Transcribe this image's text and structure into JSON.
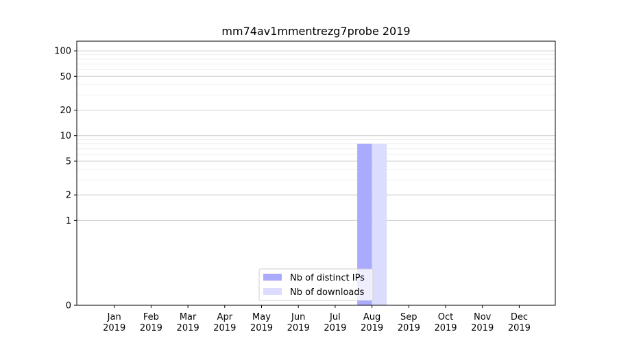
{
  "chart_data": {
    "type": "bar",
    "title": "mm74av1mmentrezg7probe 2019",
    "xlabel": "",
    "ylabel": "",
    "y_scale": "symlog",
    "ylim": [
      0,
      130
    ],
    "y_ticks": [
      0,
      1,
      2,
      5,
      10,
      20,
      50,
      100
    ],
    "y_tick_labels": [
      "0",
      "1",
      "2",
      "5",
      "10",
      "20",
      "50",
      "100"
    ],
    "categories": [
      {
        "month": "Jan",
        "year": "2019"
      },
      {
        "month": "Feb",
        "year": "2019"
      },
      {
        "month": "Mar",
        "year": "2019"
      },
      {
        "month": "Apr",
        "year": "2019"
      },
      {
        "month": "May",
        "year": "2019"
      },
      {
        "month": "Jun",
        "year": "2019"
      },
      {
        "month": "Jul",
        "year": "2019"
      },
      {
        "month": "Aug",
        "year": "2019"
      },
      {
        "month": "Sep",
        "year": "2019"
      },
      {
        "month": "Oct",
        "year": "2019"
      },
      {
        "month": "Nov",
        "year": "2019"
      },
      {
        "month": "Dec",
        "year": "2019"
      }
    ],
    "series": [
      {
        "name": "Nb of distinct IPs",
        "color": "#aaaaff",
        "values": [
          0,
          0,
          0,
          0,
          0,
          0,
          0,
          8,
          0,
          0,
          0,
          0
        ]
      },
      {
        "name": "Nb of downloads",
        "color": "#dcdcff",
        "values": [
          0,
          0,
          0,
          0,
          0,
          0,
          0,
          8,
          0,
          0,
          0,
          0
        ]
      }
    ],
    "grid": "horizontal",
    "legend_position": "bottom-center"
  }
}
